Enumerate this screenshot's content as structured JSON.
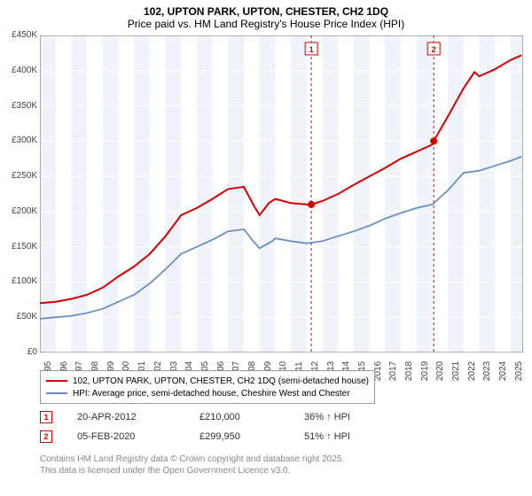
{
  "title": {
    "line1": "102, UPTON PARK, UPTON, CHESTER, CH2 1DQ",
    "line2": "Price paid vs. HM Land Registry's House Price Index (HPI)"
  },
  "chart": {
    "type": "line",
    "x_years": [
      1995,
      1996,
      1997,
      1998,
      1999,
      2000,
      2001,
      2002,
      2003,
      2004,
      2005,
      2006,
      2007,
      2008,
      2009,
      2010,
      2011,
      2012,
      2013,
      2014,
      2015,
      2016,
      2017,
      2018,
      2019,
      2020,
      2021,
      2022,
      2023,
      2024,
      2025
    ],
    "xlim": [
      1995,
      2025.8
    ],
    "ylim": [
      0,
      450000
    ],
    "ytick_step": 50000,
    "ytick_labels": [
      "£0",
      "£50K",
      "£100K",
      "£150K",
      "£200K",
      "£250K",
      "£300K",
      "£350K",
      "£400K",
      "£450K"
    ],
    "background_color": "#f0f4fa",
    "alt_band_color": "#ffffff",
    "grid_color": "#ffffff",
    "axis_color": "#666",
    "series": [
      {
        "name": "property",
        "label": "102, UPTON PARK, UPTON, CHESTER, CH2 1DQ (semi-detached house)",
        "color": "#d40000",
        "width": 2,
        "points": [
          [
            1995,
            70000
          ],
          [
            1996,
            72000
          ],
          [
            1997,
            76000
          ],
          [
            1998,
            82000
          ],
          [
            1999,
            92000
          ],
          [
            2000,
            108000
          ],
          [
            2001,
            122000
          ],
          [
            2002,
            140000
          ],
          [
            2003,
            165000
          ],
          [
            2004,
            195000
          ],
          [
            2005,
            205000
          ],
          [
            2006,
            218000
          ],
          [
            2007,
            232000
          ],
          [
            2008,
            235000
          ],
          [
            2008.6,
            210000
          ],
          [
            2009,
            195000
          ],
          [
            2009.6,
            212000
          ],
          [
            2010,
            218000
          ],
          [
            2011,
            212000
          ],
          [
            2012,
            210000
          ],
          [
            2012.3,
            210000
          ],
          [
            2013,
            215000
          ],
          [
            2014,
            225000
          ],
          [
            2015,
            238000
          ],
          [
            2016,
            250000
          ],
          [
            2017,
            262000
          ],
          [
            2018,
            275000
          ],
          [
            2019,
            285000
          ],
          [
            2020,
            295000
          ],
          [
            2020.1,
            299950
          ],
          [
            2021,
            335000
          ],
          [
            2022,
            375000
          ],
          [
            2022.7,
            398000
          ],
          [
            2023,
            392000
          ],
          [
            2024,
            402000
          ],
          [
            2025,
            415000
          ],
          [
            2025.7,
            422000
          ]
        ]
      },
      {
        "name": "hpi",
        "label": "HPI: Average price, semi-detached house, Cheshire West and Chester",
        "color": "#6a8fc7",
        "width": 1.8,
        "points": [
          [
            1995,
            48000
          ],
          [
            1996,
            50000
          ],
          [
            1997,
            52000
          ],
          [
            1998,
            56000
          ],
          [
            1999,
            62000
          ],
          [
            2000,
            72000
          ],
          [
            2001,
            82000
          ],
          [
            2002,
            98000
          ],
          [
            2003,
            118000
          ],
          [
            2004,
            140000
          ],
          [
            2005,
            150000
          ],
          [
            2006,
            160000
          ],
          [
            2007,
            172000
          ],
          [
            2008,
            175000
          ],
          [
            2008.6,
            158000
          ],
          [
            2009,
            148000
          ],
          [
            2009.8,
            158000
          ],
          [
            2010,
            162000
          ],
          [
            2011,
            158000
          ],
          [
            2012,
            155000
          ],
          [
            2013,
            158000
          ],
          [
            2014,
            165000
          ],
          [
            2015,
            172000
          ],
          [
            2016,
            180000
          ],
          [
            2017,
            190000
          ],
          [
            2018,
            198000
          ],
          [
            2019,
            205000
          ],
          [
            2020,
            210000
          ],
          [
            2021,
            230000
          ],
          [
            2022,
            255000
          ],
          [
            2023,
            258000
          ],
          [
            2024,
            265000
          ],
          [
            2025,
            272000
          ],
          [
            2025.7,
            278000
          ]
        ]
      }
    ],
    "sale_markers": [
      {
        "num": "1",
        "x": 2012.3,
        "y": 210000,
        "label_y": 440000
      },
      {
        "num": "2",
        "x": 2020.1,
        "y": 299950,
        "label_y": 440000
      }
    ],
    "marker_line_color": "#d40000",
    "marker_line_dash": "3,3",
    "marker_dot_color": "#d40000",
    "marker_box_border": "#d40000",
    "marker_box_text": "#d40000",
    "marker_box_bg": "#ffffff"
  },
  "legend": {
    "line1": "102, UPTON PARK, UPTON, CHESTER, CH2 1DQ (semi-detached house)",
    "line2": "HPI: Average price, semi-detached house, Cheshire West and Chester"
  },
  "sales": [
    {
      "num": "1",
      "date": "20-APR-2012",
      "price": "£210,000",
      "hpi": "36% ↑ HPI"
    },
    {
      "num": "2",
      "date": "05-FEB-2020",
      "price": "£299,950",
      "hpi": "51% ↑ HPI"
    }
  ],
  "footer": {
    "line1": "Contains HM Land Registry data © Crown copyright and database right 2025.",
    "line2": "This data is licensed under the Open Government Licence v3.0."
  }
}
